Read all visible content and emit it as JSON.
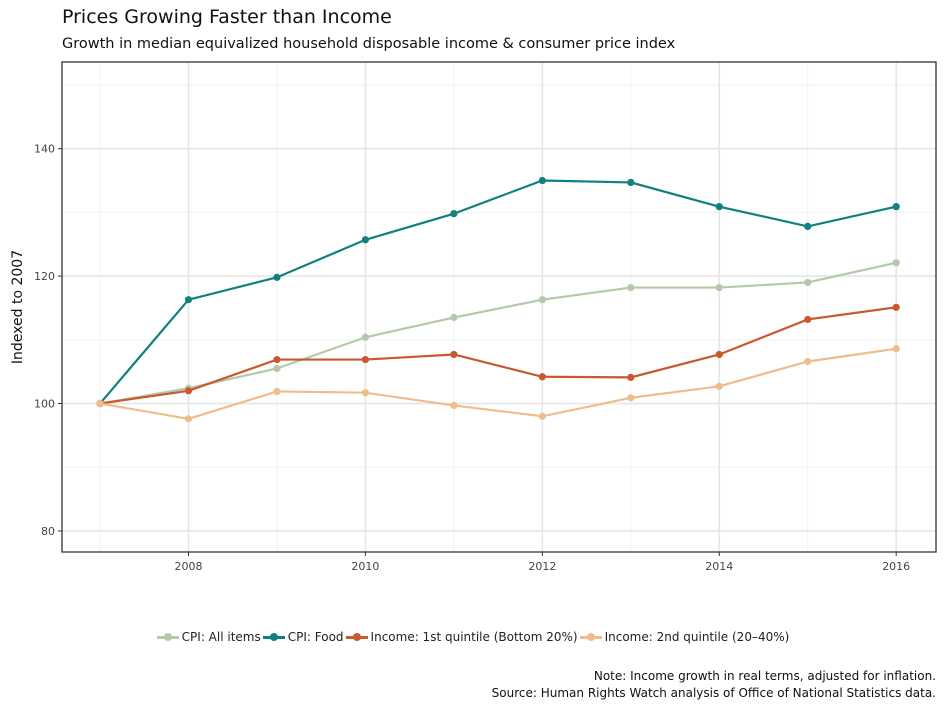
{
  "title": "Prices Growing Faster than Income",
  "subtitle": "Growth in median equivalized household disposable income & consumer price index",
  "note_line1": "Note: Income growth in real terms, adjusted for inflation.",
  "note_line2": "Source: Human Rights Watch analysis of Office of National Statistics data.",
  "chart_data": {
    "type": "line",
    "title": "Prices Growing Faster than Income",
    "xlabel": "",
    "ylabel": "Indexed to 2007",
    "x": [
      2007,
      2008,
      2009,
      2010,
      2011,
      2012,
      2013,
      2014,
      2015,
      2016
    ],
    "xlim": [
      2006.57,
      2016.45
    ],
    "ylim": [
      76.7,
      153.6
    ],
    "xticks": [
      "2008",
      "2010",
      "2012",
      "2014",
      "2016"
    ],
    "yticks": [
      "80",
      "100",
      "120",
      "140"
    ],
    "grid": true,
    "legend_position": "bottom",
    "series": [
      {
        "name": "CPI: All items",
        "color": "#b3c9a9",
        "values": [
          100,
          102.4,
          105.5,
          110.4,
          113.5,
          116.3,
          118.2,
          118.2,
          119.0,
          122.1
        ]
      },
      {
        "name": "CPI: Food",
        "color": "#12807f",
        "values": [
          100,
          116.3,
          119.8,
          125.7,
          129.8,
          135.0,
          134.7,
          130.9,
          127.8,
          130.9
        ]
      },
      {
        "name": "Income: 1st quintile (Bottom 20%)",
        "color": "#c8592f",
        "values": [
          100,
          102.0,
          106.9,
          106.9,
          107.7,
          104.2,
          104.1,
          107.7,
          113.2,
          115.1
        ]
      },
      {
        "name": "Income: 2nd quintile (20–40%)",
        "color": "#efbd8c",
        "values": [
          100,
          97.6,
          101.9,
          101.7,
          99.7,
          98.0,
          100.9,
          102.7,
          106.6,
          108.6
        ]
      }
    ]
  }
}
